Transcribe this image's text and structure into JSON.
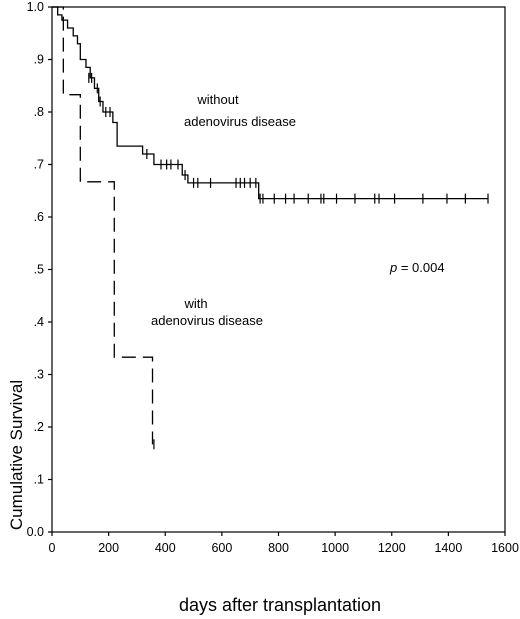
{
  "chart_data": {
    "type": "line",
    "subtype": "kaplan-meier step curve",
    "xlabel": "days after transplantation",
    "ylabel": "Cumulative Survival",
    "xlim": [
      0,
      1600
    ],
    "ylim": [
      0.0,
      1.0
    ],
    "x_ticks": [
      0,
      200,
      400,
      600,
      800,
      1000,
      1200,
      1400,
      1600
    ],
    "x_tick_labels": [
      "0",
      "200",
      "400",
      "600",
      "800",
      "1000",
      "1200",
      "1400",
      "1600"
    ],
    "y_ticks": [
      0.0,
      0.1,
      0.2,
      0.3,
      0.4,
      0.5,
      0.6,
      0.7,
      0.8,
      0.9,
      1.0
    ],
    "y_tick_labels": [
      "0.0",
      ".1",
      ".2",
      ".3",
      ".4",
      ".5",
      ".6",
      ".7",
      ".8",
      ".9",
      "1.0"
    ],
    "grid": false,
    "series": [
      {
        "key": "without",
        "line_style": "solid",
        "label_lines": [
          "without",
          "adenovirus disease"
        ],
        "steps": [
          [
            0,
            1.0
          ],
          [
            20,
            0.985
          ],
          [
            35,
            0.975
          ],
          [
            55,
            0.96
          ],
          [
            75,
            0.945
          ],
          [
            90,
            0.93
          ],
          [
            100,
            0.9
          ],
          [
            120,
            0.885
          ],
          [
            135,
            0.865
          ],
          [
            150,
            0.845
          ],
          [
            165,
            0.82
          ],
          [
            180,
            0.8
          ],
          [
            215,
            0.78
          ],
          [
            230,
            0.735
          ],
          [
            320,
            0.72
          ],
          [
            360,
            0.7
          ],
          [
            460,
            0.68
          ],
          [
            480,
            0.665
          ],
          [
            730,
            0.635
          ],
          [
            1540,
            0.635
          ]
        ],
        "censored": [
          [
            130,
            0.865
          ],
          [
            140,
            0.865
          ],
          [
            160,
            0.845
          ],
          [
            170,
            0.82
          ],
          [
            190,
            0.8
          ],
          [
            205,
            0.8
          ],
          [
            335,
            0.72
          ],
          [
            385,
            0.7
          ],
          [
            405,
            0.7
          ],
          [
            420,
            0.7
          ],
          [
            445,
            0.7
          ],
          [
            470,
            0.68
          ],
          [
            500,
            0.665
          ],
          [
            515,
            0.665
          ],
          [
            560,
            0.665
          ],
          [
            650,
            0.665
          ],
          [
            665,
            0.665
          ],
          [
            680,
            0.665
          ],
          [
            700,
            0.665
          ],
          [
            720,
            0.665
          ],
          [
            735,
            0.635
          ],
          [
            745,
            0.635
          ],
          [
            785,
            0.635
          ],
          [
            825,
            0.635
          ],
          [
            855,
            0.635
          ],
          [
            905,
            0.635
          ],
          [
            950,
            0.635
          ],
          [
            960,
            0.635
          ],
          [
            1005,
            0.635
          ],
          [
            1070,
            0.635
          ],
          [
            1140,
            0.635
          ],
          [
            1155,
            0.635
          ],
          [
            1210,
            0.635
          ],
          [
            1310,
            0.635
          ],
          [
            1395,
            0.635
          ],
          [
            1460,
            0.635
          ],
          [
            1540,
            0.635
          ]
        ]
      },
      {
        "key": "with",
        "line_style": "dashed",
        "label_lines": [
          "with",
          "adenovirus disease"
        ],
        "steps": [
          [
            0,
            1.0
          ],
          [
            40,
            0.833
          ],
          [
            100,
            0.667
          ],
          [
            220,
            0.333
          ],
          [
            355,
            0.167
          ]
        ],
        "censored": [
          [
            360,
            0.167
          ]
        ]
      }
    ],
    "annotations": [
      {
        "text_prefix": "p",
        "text_rest": " = 0.004",
        "near": "right middle"
      }
    ]
  }
}
